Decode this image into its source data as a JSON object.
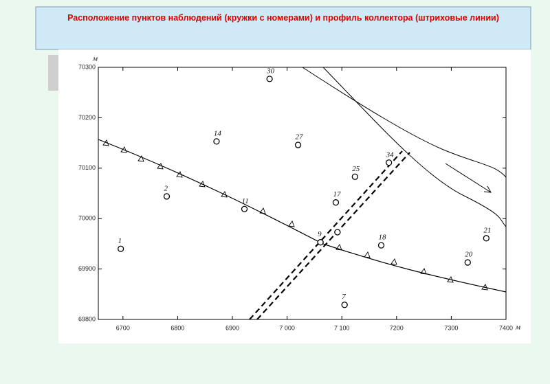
{
  "chart_data": {
    "type": "scatter",
    "title": "Расположение пунктов наблюдений (кружки с номерами) и профиль коллектора (штриховые линии)",
    "x_unit": "м",
    "y_unit": "м",
    "x": [
      6696,
      6780,
      6871,
      6968,
      7020,
      6922,
      7061,
      7092,
      7089,
      7124,
      7186,
      7172,
      7105,
      7330,
      7364
    ],
    "values": [
      69940,
      70044,
      70153,
      70277,
      70146,
      70019,
      69953,
      69973,
      70032,
      70083,
      70111,
      69947,
      69829,
      69913,
      69961
    ],
    "point_labels": [
      "1",
      "2",
      "14",
      "30",
      "27",
      "11",
      "9",
      null,
      "17",
      "25",
      "34",
      "18",
      "7",
      "20",
      "21"
    ],
    "color": "#000000",
    "xlim": [
      6655,
      7400
    ],
    "ylim": [
      69800,
      70300
    ],
    "xticks": [
      6700,
      6800,
      6900,
      {
        "value": 7000,
        "label": "7 000"
      },
      {
        "value": 7100,
        "label": "7 100"
      },
      7200,
      7300,
      7400
    ],
    "yticks": [
      69800,
      69900,
      70000,
      70100,
      70200,
      70300
    ]
  }
}
